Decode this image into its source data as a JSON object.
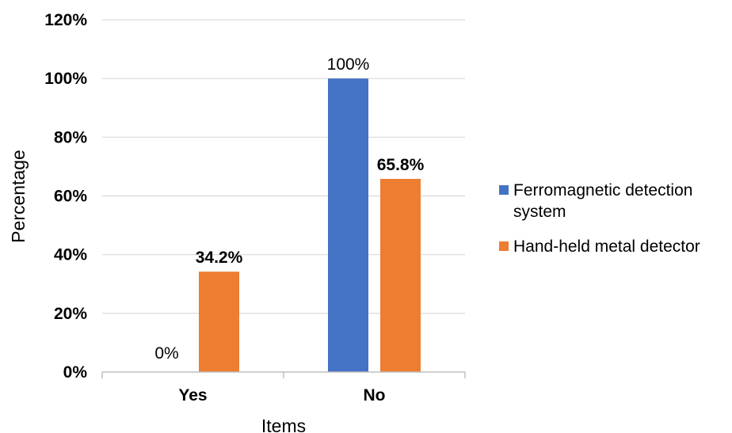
{
  "chart_data": {
    "type": "bar",
    "title": "",
    "xlabel": "Items",
    "ylabel": "Percentage",
    "categories": [
      "Yes",
      "No"
    ],
    "ylim": [
      0,
      120
    ],
    "yticks": [
      "0%",
      "20%",
      "40%",
      "60%",
      "80%",
      "100%",
      "120%"
    ],
    "grid": true,
    "legend_position": "right",
    "series": [
      {
        "name": "Ferromagnetic detection system",
        "legend_lines": [
          "Ferromagnetic detection",
          "system"
        ],
        "color": "#4472C4",
        "values": [
          0,
          100
        ],
        "labels": [
          "0%",
          "100%"
        ],
        "label_bold": false
      },
      {
        "name": "Hand-held metal detector",
        "legend_lines": [
          "Hand-held metal detector"
        ],
        "color": "#ED7D31",
        "values": [
          34.2,
          65.8
        ],
        "labels": [
          "34.2%",
          "65.8%"
        ],
        "label_bold": true
      }
    ]
  }
}
